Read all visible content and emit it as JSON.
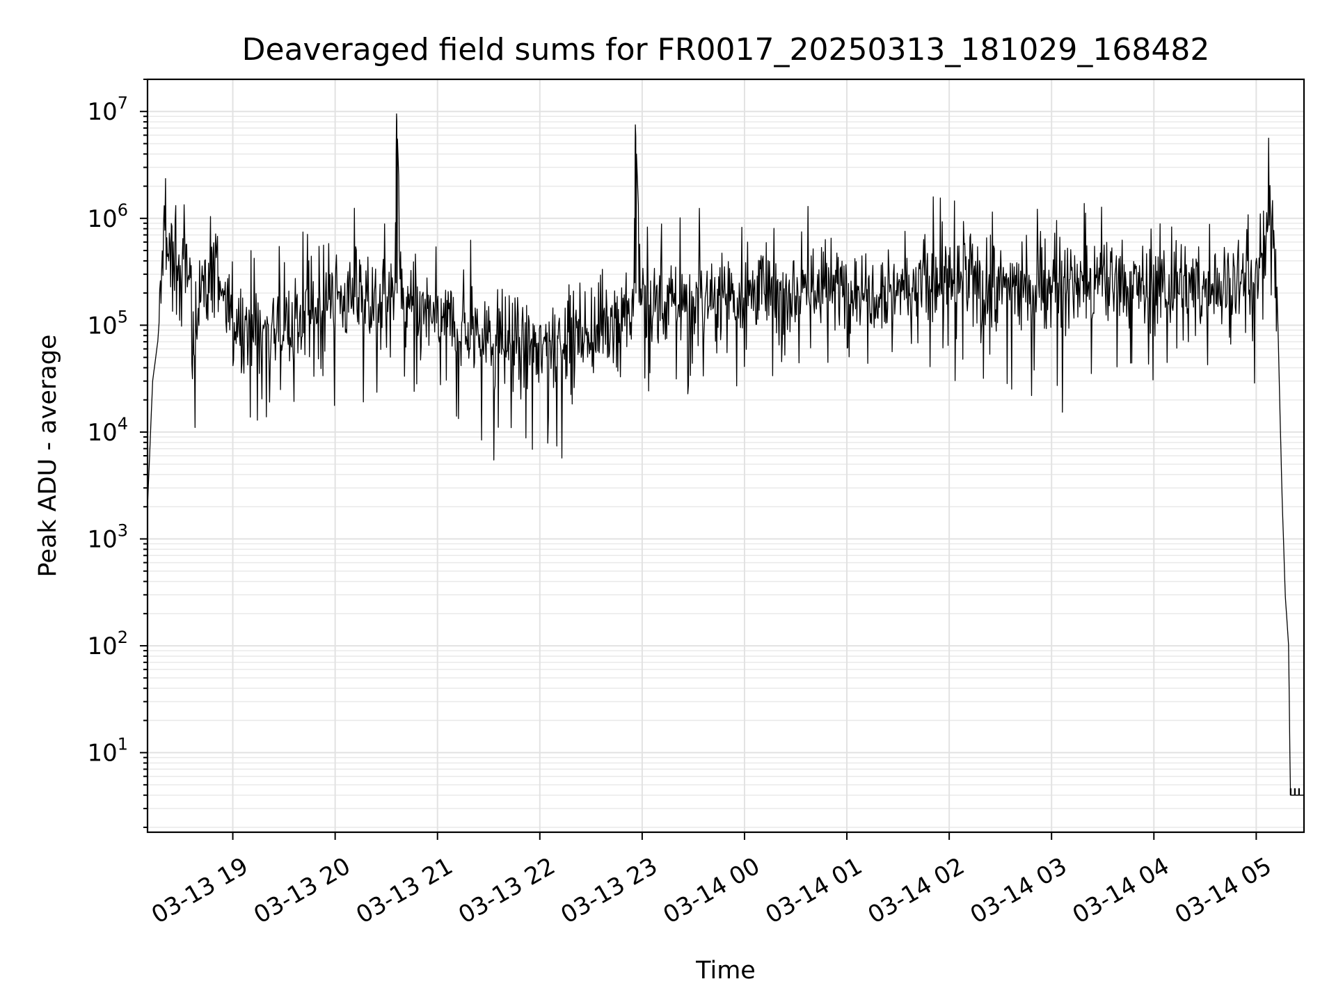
{
  "chart_data": {
    "type": "line",
    "title": "Deaveraged field sums for FR0017_20250313_181029_168482",
    "xlabel": "Time",
    "ylabel": "Peak ADU - average",
    "yscale": "log",
    "ylim": [
      1.8,
      20000000
    ],
    "xlim": [
      "2025-03-13 18:10",
      "2025-03-14 05:28"
    ],
    "grid": "on (major and minor)",
    "legend": "none",
    "line_color": "#000000",
    "x_tick_labels": [
      "03-13 19",
      "03-13 20",
      "03-13 21",
      "03-13 22",
      "03-13 23",
      "03-14 00",
      "03-14 01",
      "03-14 02",
      "03-14 03",
      "03-14 04",
      "03-14 05"
    ],
    "x_ticks": [
      "2025-03-13 19:00",
      "2025-03-13 20:00",
      "2025-03-13 21:00",
      "2025-03-13 22:00",
      "2025-03-13 23:00",
      "2025-03-14 00:00",
      "2025-03-14 01:00",
      "2025-03-14 02:00",
      "2025-03-14 03:00",
      "2025-03-14 04:00",
      "2025-03-14 05:00"
    ],
    "y_ticks": [
      {
        "base": "10",
        "exp": "1",
        "value": 10
      },
      {
        "base": "10",
        "exp": "2",
        "value": 100
      },
      {
        "base": "10",
        "exp": "3",
        "value": 1000
      },
      {
        "base": "10",
        "exp": "4",
        "value": 10000
      },
      {
        "base": "10",
        "exp": "5",
        "value": 100000
      },
      {
        "base": "10",
        "exp": "6",
        "value": 1000000
      },
      {
        "base": "10",
        "exp": "7",
        "value": 10000000
      }
    ],
    "series": [
      {
        "x": [
          "2025-03-13 18:10",
          "2025-03-13 18:13",
          "2025-03-13 18:16",
          "2025-03-13 18:18",
          "2025-03-13 18:20",
          "2025-03-13 18:22",
          "2025-03-13 18:24",
          "2025-03-13 18:26",
          "2025-03-13 18:30",
          "2025-03-13 18:35",
          "2025-03-13 18:37",
          "2025-03-13 18:40",
          "2025-03-13 18:45",
          "2025-03-13 18:50",
          "2025-03-13 18:55",
          "2025-03-13 19:00",
          "2025-03-13 19:10",
          "2025-03-13 19:20",
          "2025-03-13 19:30",
          "2025-03-13 19:40",
          "2025-03-13 19:55",
          "2025-03-13 20:00",
          "2025-03-13 20:10",
          "2025-03-13 20:20",
          "2025-03-13 20:30",
          "2025-03-13 20:35",
          "2025-03-13 20:36",
          "2025-03-13 20:40",
          "2025-03-13 20:50",
          "2025-03-13 21:00",
          "2025-03-13 21:20",
          "2025-03-13 21:40",
          "2025-03-13 22:00",
          "2025-03-13 22:20",
          "2025-03-13 22:40",
          "2025-03-13 22:50",
          "2025-03-13 22:55",
          "2025-03-13 22:56",
          "2025-03-13 23:00",
          "2025-03-13 23:20",
          "2025-03-13 23:40",
          "2025-03-14 00:00",
          "2025-03-14 00:30",
          "2025-03-14 01:00",
          "2025-03-14 01:30",
          "2025-03-14 02:00",
          "2025-03-14 02:30",
          "2025-03-14 03:00",
          "2025-03-14 03:30",
          "2025-03-14 04:00",
          "2025-03-14 04:30",
          "2025-03-14 05:00",
          "2025-03-14 05:06",
          "2025-03-14 05:09",
          "2025-03-14 05:12",
          "2025-03-14 05:15",
          "2025-03-14 05:17",
          "2025-03-14 05:19",
          "2025-03-14 05:20",
          "2025-03-14 05:21",
          "2025-03-14 05:28"
        ],
        "values": [
          2000,
          30000,
          70000,
          200000,
          1000000,
          500000,
          250000,
          400000,
          300000,
          350000,
          40000,
          300000,
          200000,
          500000,
          150000,
          120000,
          100000,
          90000,
          110000,
          100000,
          150000,
          200000,
          180000,
          150000,
          170000,
          200000,
          9500000,
          150000,
          130000,
          110000,
          90000,
          70000,
          60000,
          80000,
          100000,
          150000,
          120000,
          7500000,
          150000,
          170000,
          190000,
          210000,
          220000,
          230000,
          230000,
          240000,
          240000,
          230000,
          240000,
          230000,
          220000,
          300000,
          600000,
          1100000,
          300000,
          3000,
          300,
          100,
          4,
          4,
          4
        ]
      }
    ]
  }
}
